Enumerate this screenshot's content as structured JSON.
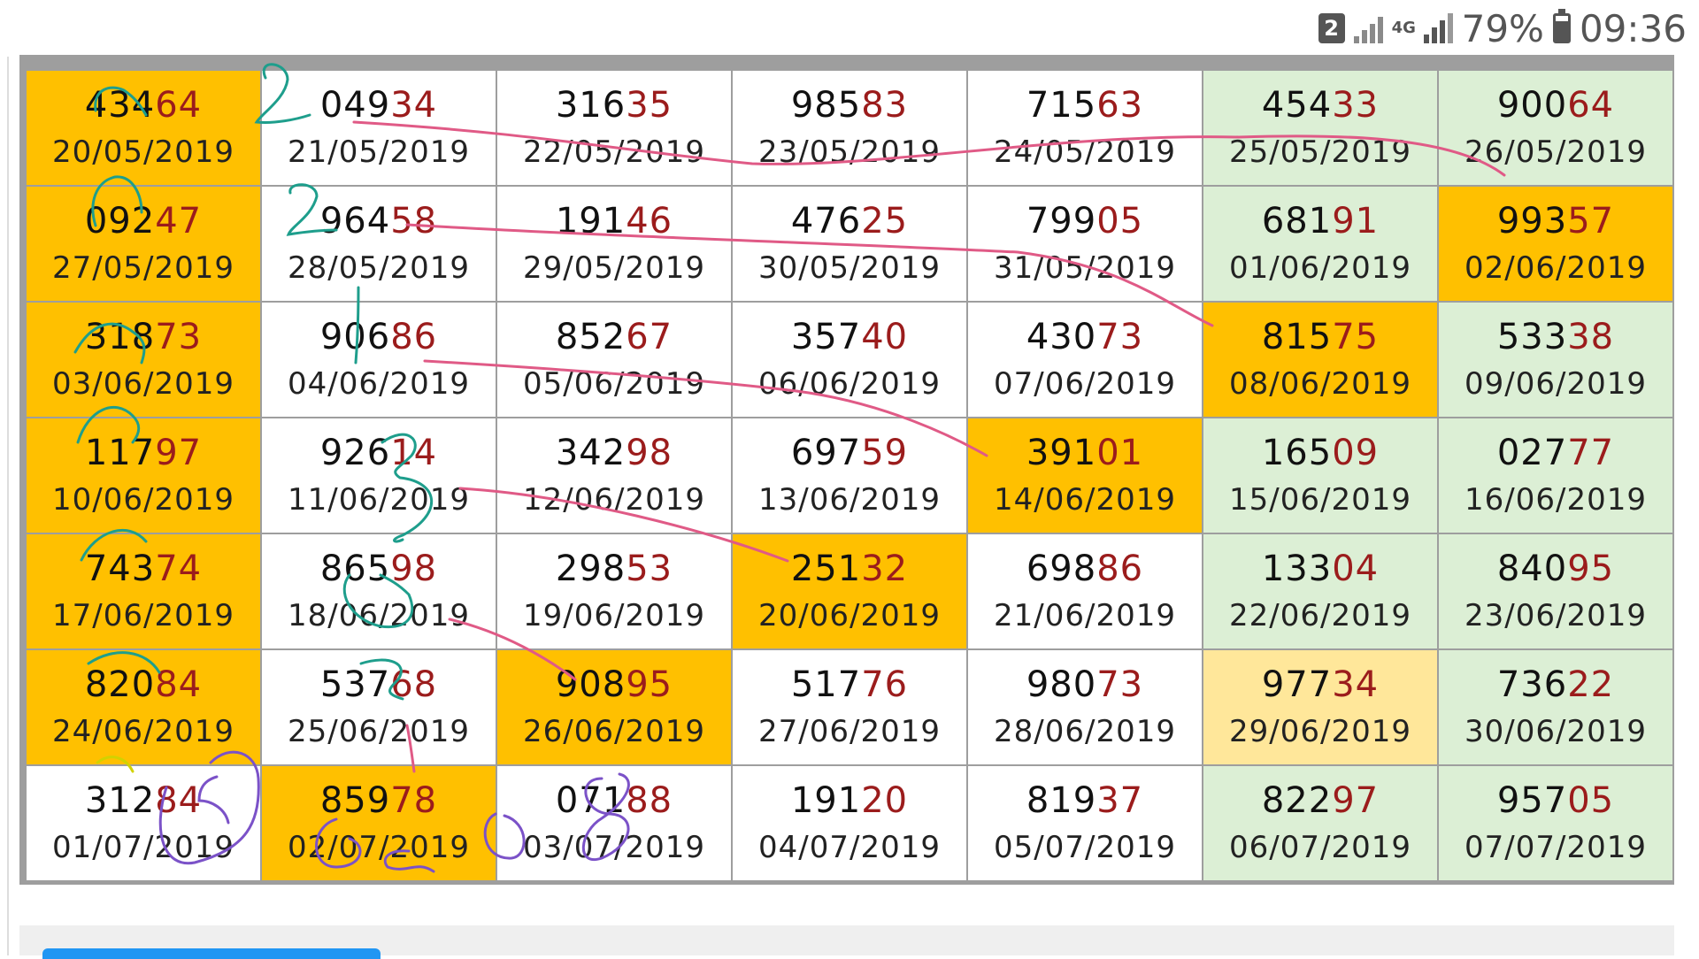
{
  "status_bar": {
    "sim_slot": "2",
    "network": "4G",
    "battery_percent": "79%",
    "battery_level": 0.79,
    "time": "09:36"
  },
  "colors": {
    "orange": "#ffc000",
    "green": "#dcefd5",
    "yellow": "#ffe79a",
    "highlight_digits": "#9b1c1c",
    "pink_ink": "#e05a86",
    "teal_ink": "#1e9e8c",
    "purple_ink": "#7b52c8"
  },
  "table": {
    "rows": [
      [
        {
          "prefix": "434",
          "suffix": "64",
          "date": "20/05/2019",
          "color": "orange"
        },
        {
          "prefix": "049",
          "suffix": "34",
          "date": "21/05/2019",
          "color": "white"
        },
        {
          "prefix": "316",
          "suffix": "35",
          "date": "22/05/2019",
          "color": "white"
        },
        {
          "prefix": "985",
          "suffix": "83",
          "date": "23/05/2019",
          "color": "white"
        },
        {
          "prefix": "715",
          "suffix": "63",
          "date": "24/05/2019",
          "color": "white"
        },
        {
          "prefix": "454",
          "suffix": "33",
          "date": "25/05/2019",
          "color": "green"
        },
        {
          "prefix": "900",
          "suffix": "64",
          "date": "26/05/2019",
          "color": "green"
        }
      ],
      [
        {
          "prefix": "092",
          "suffix": "47",
          "date": "27/05/2019",
          "color": "orange"
        },
        {
          "prefix": "964",
          "suffix": "58",
          "date": "28/05/2019",
          "color": "white"
        },
        {
          "prefix": "191",
          "suffix": "46",
          "date": "29/05/2019",
          "color": "white"
        },
        {
          "prefix": "476",
          "suffix": "25",
          "date": "30/05/2019",
          "color": "white"
        },
        {
          "prefix": "799",
          "suffix": "05",
          "date": "31/05/2019",
          "color": "white"
        },
        {
          "prefix": "681",
          "suffix": "91",
          "date": "01/06/2019",
          "color": "green"
        },
        {
          "prefix": "993",
          "suffix": "57",
          "date": "02/06/2019",
          "color": "orange"
        }
      ],
      [
        {
          "prefix": "318",
          "suffix": "73",
          "date": "03/06/2019",
          "color": "orange"
        },
        {
          "prefix": "906",
          "suffix": "86",
          "date": "04/06/2019",
          "color": "white"
        },
        {
          "prefix": "852",
          "suffix": "67",
          "date": "05/06/2019",
          "color": "white"
        },
        {
          "prefix": "357",
          "suffix": "40",
          "date": "06/06/2019",
          "color": "white"
        },
        {
          "prefix": "430",
          "suffix": "73",
          "date": "07/06/2019",
          "color": "white"
        },
        {
          "prefix": "815",
          "suffix": "75",
          "date": "08/06/2019",
          "color": "orange"
        },
        {
          "prefix": "533",
          "suffix": "38",
          "date": "09/06/2019",
          "color": "green"
        }
      ],
      [
        {
          "prefix": "117",
          "suffix": "97",
          "date": "10/06/2019",
          "color": "orange"
        },
        {
          "prefix": "926",
          "suffix": "14",
          "date": "11/06/2019",
          "color": "white"
        },
        {
          "prefix": "342",
          "suffix": "98",
          "date": "12/06/2019",
          "color": "white"
        },
        {
          "prefix": "697",
          "suffix": "59",
          "date": "13/06/2019",
          "color": "white"
        },
        {
          "prefix": "391",
          "suffix": "01",
          "date": "14/06/2019",
          "color": "orange"
        },
        {
          "prefix": "165",
          "suffix": "09",
          "date": "15/06/2019",
          "color": "green"
        },
        {
          "prefix": "027",
          "suffix": "77",
          "date": "16/06/2019",
          "color": "green"
        }
      ],
      [
        {
          "prefix": "743",
          "suffix": "74",
          "date": "17/06/2019",
          "color": "orange"
        },
        {
          "prefix": "865",
          "suffix": "98",
          "date": "18/06/2019",
          "color": "white"
        },
        {
          "prefix": "298",
          "suffix": "53",
          "date": "19/06/2019",
          "color": "white"
        },
        {
          "prefix": "251",
          "suffix": "32",
          "date": "20/06/2019",
          "color": "orange"
        },
        {
          "prefix": "698",
          "suffix": "86",
          "date": "21/06/2019",
          "color": "white"
        },
        {
          "prefix": "133",
          "suffix": "04",
          "date": "22/06/2019",
          "color": "green"
        },
        {
          "prefix": "840",
          "suffix": "95",
          "date": "23/06/2019",
          "color": "green"
        }
      ],
      [
        {
          "prefix": "820",
          "suffix": "84",
          "date": "24/06/2019",
          "color": "orange"
        },
        {
          "prefix": "537",
          "suffix": "68",
          "date": "25/06/2019",
          "color": "white"
        },
        {
          "prefix": "908",
          "suffix": "95",
          "date": "26/06/2019",
          "color": "orange"
        },
        {
          "prefix": "517",
          "suffix": "76",
          "date": "27/06/2019",
          "color": "white"
        },
        {
          "prefix": "980",
          "suffix": "73",
          "date": "28/06/2019",
          "color": "white"
        },
        {
          "prefix": "977",
          "suffix": "34",
          "date": "29/06/2019",
          "color": "yellow"
        },
        {
          "prefix": "736",
          "suffix": "22",
          "date": "30/06/2019",
          "color": "green"
        }
      ],
      [
        {
          "prefix": "312",
          "suffix": "84",
          "date": "01/07/2019",
          "color": "white"
        },
        {
          "prefix": "859",
          "suffix": "78",
          "date": "02/07/2019",
          "color": "orange"
        },
        {
          "prefix": "071",
          "suffix": "88",
          "date": "03/07/2019",
          "color": "white"
        },
        {
          "prefix": "191",
          "suffix": "20",
          "date": "04/07/2019",
          "color": "white"
        },
        {
          "prefix": "819",
          "suffix": "37",
          "date": "05/07/2019",
          "color": "white"
        },
        {
          "prefix": "822",
          "suffix": "97",
          "date": "06/07/2019",
          "color": "green"
        },
        {
          "prefix": "957",
          "suffix": "05",
          "date": "07/07/2019",
          "color": "green"
        }
      ]
    ]
  }
}
